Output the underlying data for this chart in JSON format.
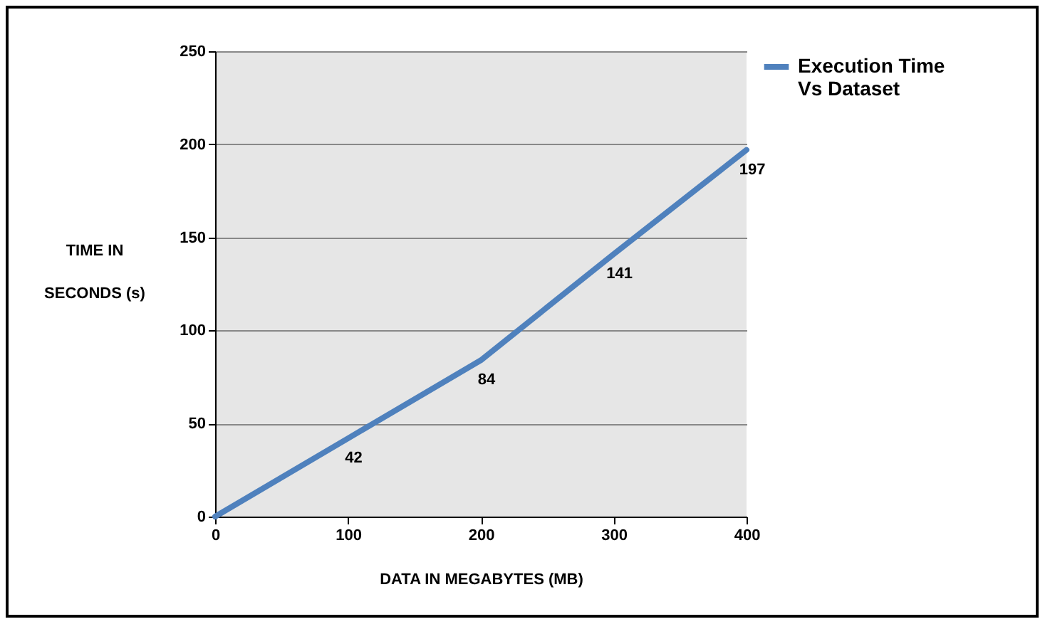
{
  "chart_data": {
    "type": "line",
    "xlabel": "DATA IN MEGABYTES (MB)",
    "ylabel": "TIME IN SECONDS (s)",
    "x": [
      0,
      100,
      200,
      300,
      400
    ],
    "series": [
      {
        "name": "Execution Time Vs Dataset",
        "color": "#4f81bd",
        "values": [
          0,
          42,
          84,
          141,
          197
        ],
        "value_labels": [
          null,
          "42",
          "84",
          "141",
          "197"
        ]
      }
    ],
    "xlim": [
      0,
      400
    ],
    "xticks": [
      0,
      100,
      200,
      300,
      400
    ],
    "ylim": [
      0,
      250
    ],
    "yticks": [
      0,
      50,
      100,
      150,
      200,
      250
    ],
    "grid": "y",
    "legend": "right",
    "marker": "none",
    "line_style": "solid"
  }
}
